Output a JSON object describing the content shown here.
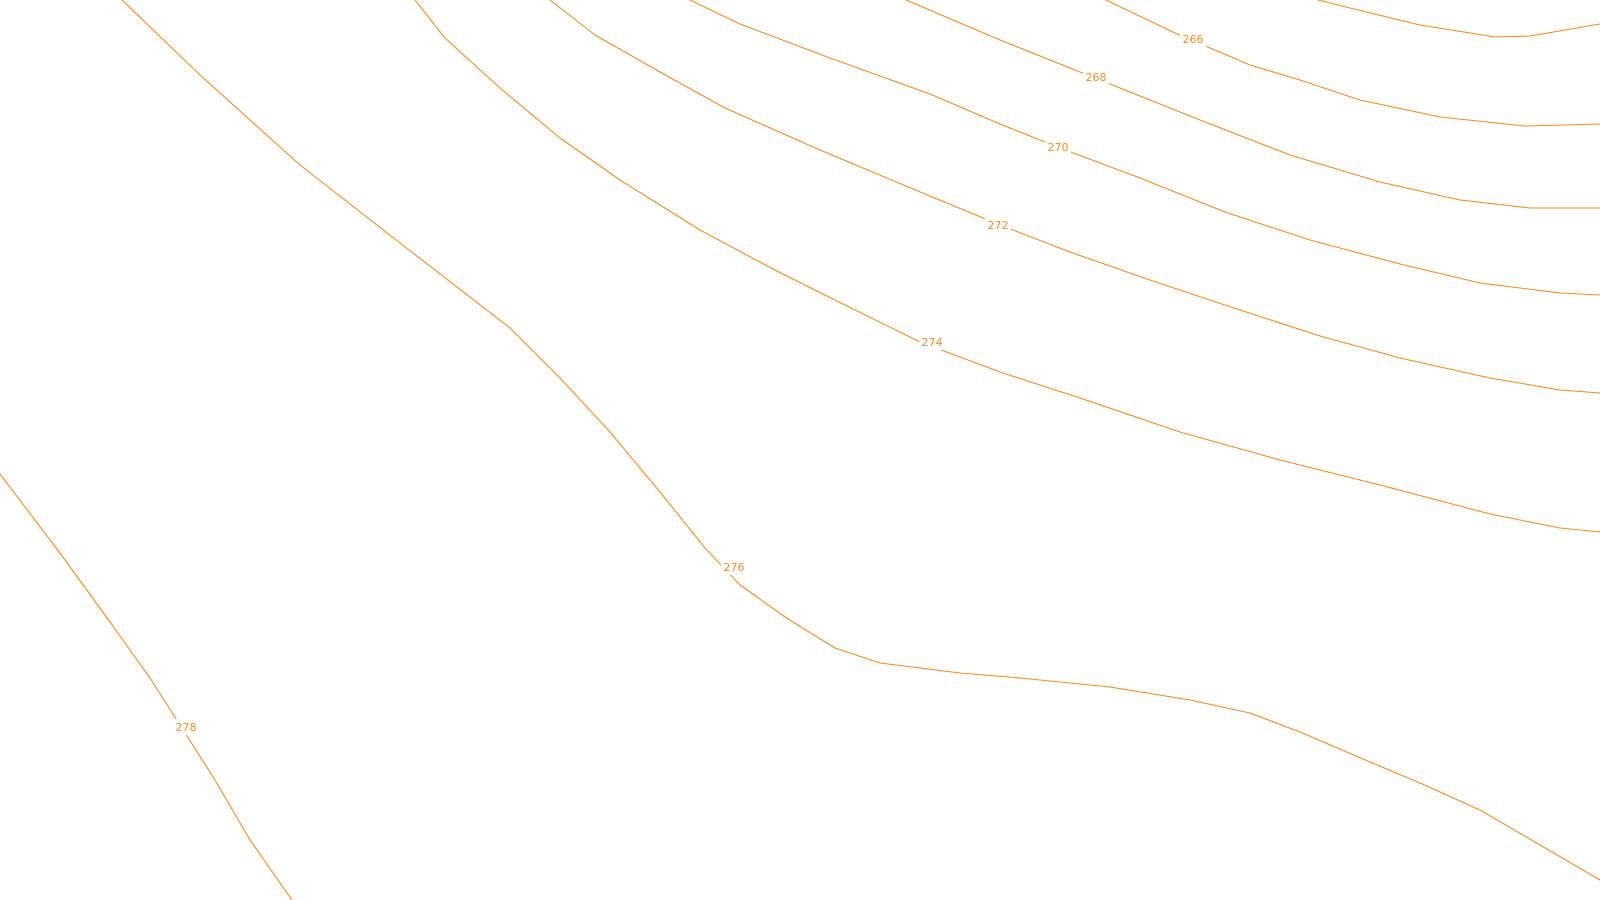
{
  "map": {
    "contour_color": "#f28c28",
    "background_color": "#ffffff",
    "contours": [
      {
        "id": "c264",
        "label": ""
      },
      {
        "id": "c266",
        "label": "266"
      },
      {
        "id": "c268",
        "label": "268"
      },
      {
        "id": "c270",
        "label": "270"
      },
      {
        "id": "c272",
        "label": "272"
      },
      {
        "id": "c274",
        "label": "274"
      },
      {
        "id": "c276",
        "label": "276"
      },
      {
        "id": "c278",
        "label": "278"
      }
    ]
  }
}
